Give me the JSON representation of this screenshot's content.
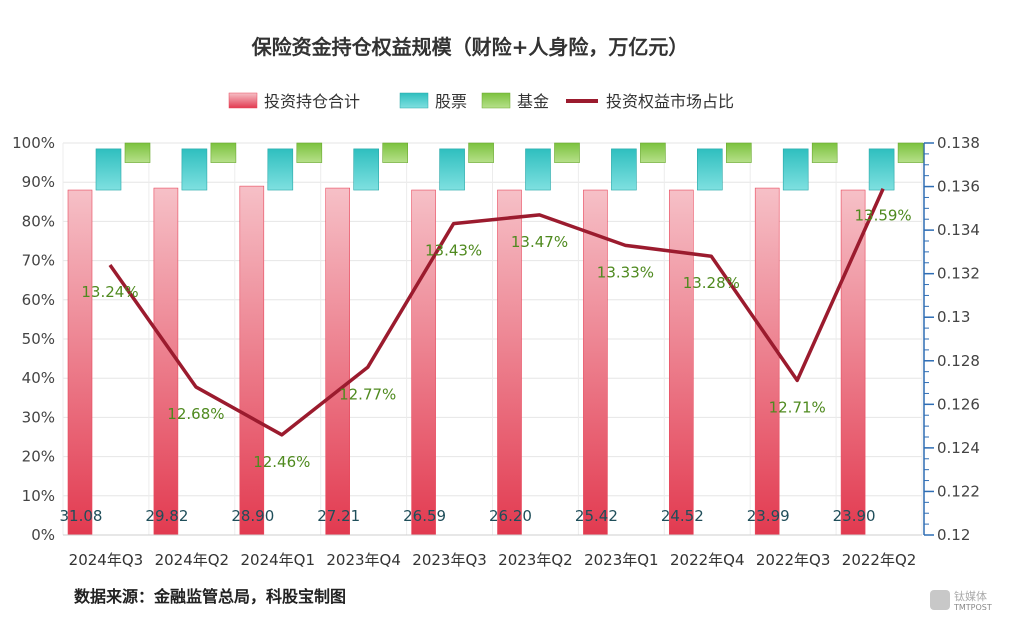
{
  "chart_data": {
    "type": "bar",
    "title": "保险资金持仓权益规模（财险+人身险，万亿元）",
    "categories": [
      "2024年Q3",
      "2024年Q2",
      "2024年Q1",
      "2023年Q4",
      "2023年Q3",
      "2023年Q2",
      "2023年Q1",
      "2022年Q4",
      "2022年Q3",
      "2022年Q2"
    ],
    "legend": [
      "投资持仓合计",
      "股票",
      "基金",
      "投资权益市场占比"
    ],
    "legend_position": "top",
    "series": [
      {
        "name": "投资持仓合计",
        "type": "bar",
        "axis": "left",
        "values": [
          88.0,
          88.5,
          89.0,
          88.5,
          88.0,
          88.0,
          88.0,
          88.0,
          88.5,
          88.0
        ],
        "labels": [
          "31.08",
          "29.82",
          "28.90",
          "27.21",
          "26.59",
          "26.20",
          "25.42",
          "24.52",
          "23.99",
          "23.90"
        ],
        "color": "#e8485c"
      },
      {
        "name": "股票",
        "type": "bar",
        "axis": "left",
        "values": [
          10.5,
          10.5,
          10.5,
          10.5,
          10.5,
          10.5,
          10.5,
          10.5,
          10.5,
          10.5
        ],
        "base": 88.0,
        "color": "#3cc4c4"
      },
      {
        "name": "基金",
        "type": "bar",
        "axis": "left",
        "values": [
          5.0,
          5.0,
          5.0,
          5.0,
          5.0,
          5.0,
          5.0,
          5.0,
          5.0,
          5.0
        ],
        "base": 95.0,
        "color": "#8cc63f"
      },
      {
        "name": "投资权益市场占比",
        "type": "line",
        "axis": "right",
        "values": [
          0.1324,
          0.1268,
          0.1246,
          0.1277,
          0.1343,
          0.1347,
          0.1333,
          0.1328,
          0.1271,
          0.1359
        ],
        "labels": [
          "13.24%",
          "12.68%",
          "12.46%",
          "12.77%",
          "13.43%",
          "13.47%",
          "13.33%",
          "13.28%",
          "12.71%",
          "13.59%"
        ],
        "color": "#9b1b2e"
      }
    ],
    "y_left": {
      "min": 0,
      "max": 100,
      "ticks": [
        "0%",
        "10%",
        "20%",
        "30%",
        "40%",
        "50%",
        "60%",
        "70%",
        "80%",
        "90%",
        "100%"
      ]
    },
    "y_right": {
      "min": 0.12,
      "max": 0.138,
      "ticks": [
        "0.12",
        "0.122",
        "0.124",
        "0.126",
        "0.128",
        "0.13",
        "0.132",
        "0.134",
        "0.136",
        "0.138"
      ]
    },
    "grid": true
  },
  "source": "数据来源：金融监管总局，科股宝制图",
  "watermark": {
    "text": "钛媒体",
    "sub": "TMTPOST"
  }
}
